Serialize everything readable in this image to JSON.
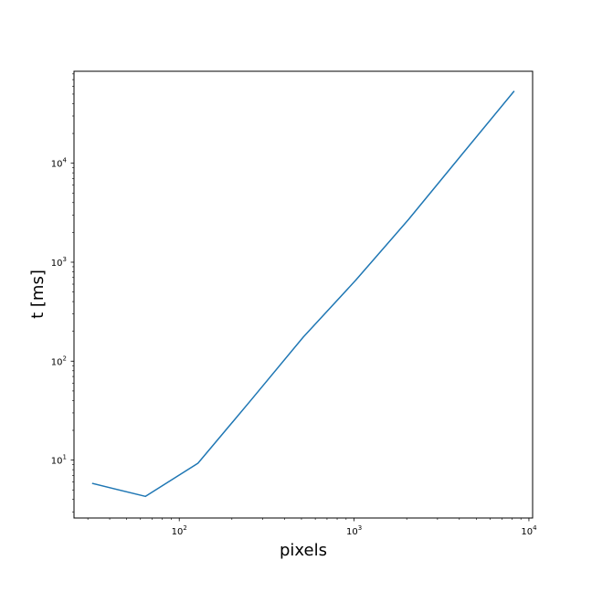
{
  "chart_data": {
    "type": "line",
    "title": "",
    "xlabel": "pixels",
    "ylabel": "t [ms]",
    "xscale": "log",
    "yscale": "log",
    "xlim": [
      25,
      10500
    ],
    "ylim": [
      2.6,
      85000
    ],
    "grid": false,
    "x_ticks": [
      {
        "base": "10",
        "exp": "2",
        "value": 100
      },
      {
        "base": "10",
        "exp": "3",
        "value": 1000
      },
      {
        "base": "10",
        "exp": "4",
        "value": 10000
      }
    ],
    "y_ticks": [
      {
        "base": "10",
        "exp": "1",
        "value": 10
      },
      {
        "base": "10",
        "exp": "2",
        "value": 100
      },
      {
        "base": "10",
        "exp": "3",
        "value": 1000
      },
      {
        "base": "10",
        "exp": "4",
        "value": 10000
      }
    ],
    "series": [
      {
        "color": "#1f77b4",
        "x": [
          32,
          64,
          128,
          256,
          512,
          1024,
          2048,
          4096,
          8192
        ],
        "y": [
          5.8,
          4.3,
          9.3,
          40,
          175,
          660,
          2700,
          12000,
          53000
        ]
      }
    ]
  }
}
